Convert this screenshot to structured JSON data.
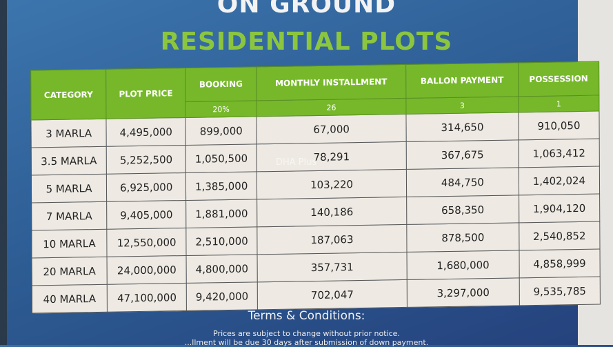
{
  "heading": {
    "line1": "ON GROUND",
    "line2": "RESIDENTIAL PLOTS"
  },
  "watermark": "DHA Plus",
  "colors": {
    "header_green": "#76b82a",
    "title_green": "#8cc63f",
    "background_blue": "#2f5f94"
  },
  "table": {
    "headers": [
      "CATEGORY",
      "PLOT PRICE",
      "BOOKING",
      "MONTHLY INSTALLMENT",
      "BALLON PAYMENT",
      "POSSESSION"
    ],
    "subheaders": [
      "20%",
      "26",
      "3",
      "1"
    ],
    "rows": [
      [
        "3 MARLA",
        "4,495,000",
        "899,000",
        "67,000",
        "314,650",
        "910,050"
      ],
      [
        "3.5 MARLA",
        "5,252,500",
        "1,050,500",
        "78,291",
        "367,675",
        "1,063,412"
      ],
      [
        "5 MARLA",
        "6,925,000",
        "1,385,000",
        "103,220",
        "484,750",
        "1,402,024"
      ],
      [
        "7 MARLA",
        "9,405,000",
        "1,881,000",
        "140,186",
        "658,350",
        "1,904,120"
      ],
      [
        "10 MARLA",
        "12,550,000",
        "2,510,000",
        "187,063",
        "878,500",
        "2,540,852"
      ],
      [
        "20 MARLA",
        "24,000,000",
        "4,800,000",
        "357,731",
        "1,680,000",
        "4,858,999"
      ],
      [
        "40 MARLA",
        "47,100,000",
        "9,420,000",
        "702,047",
        "3,297,000",
        "9,535,785"
      ]
    ]
  },
  "terms": {
    "title": "Terms & Conditions:",
    "lines": [
      "Prices are subject to change without prior notice.",
      "...llment will be due 30 days after submission of down payment."
    ]
  }
}
